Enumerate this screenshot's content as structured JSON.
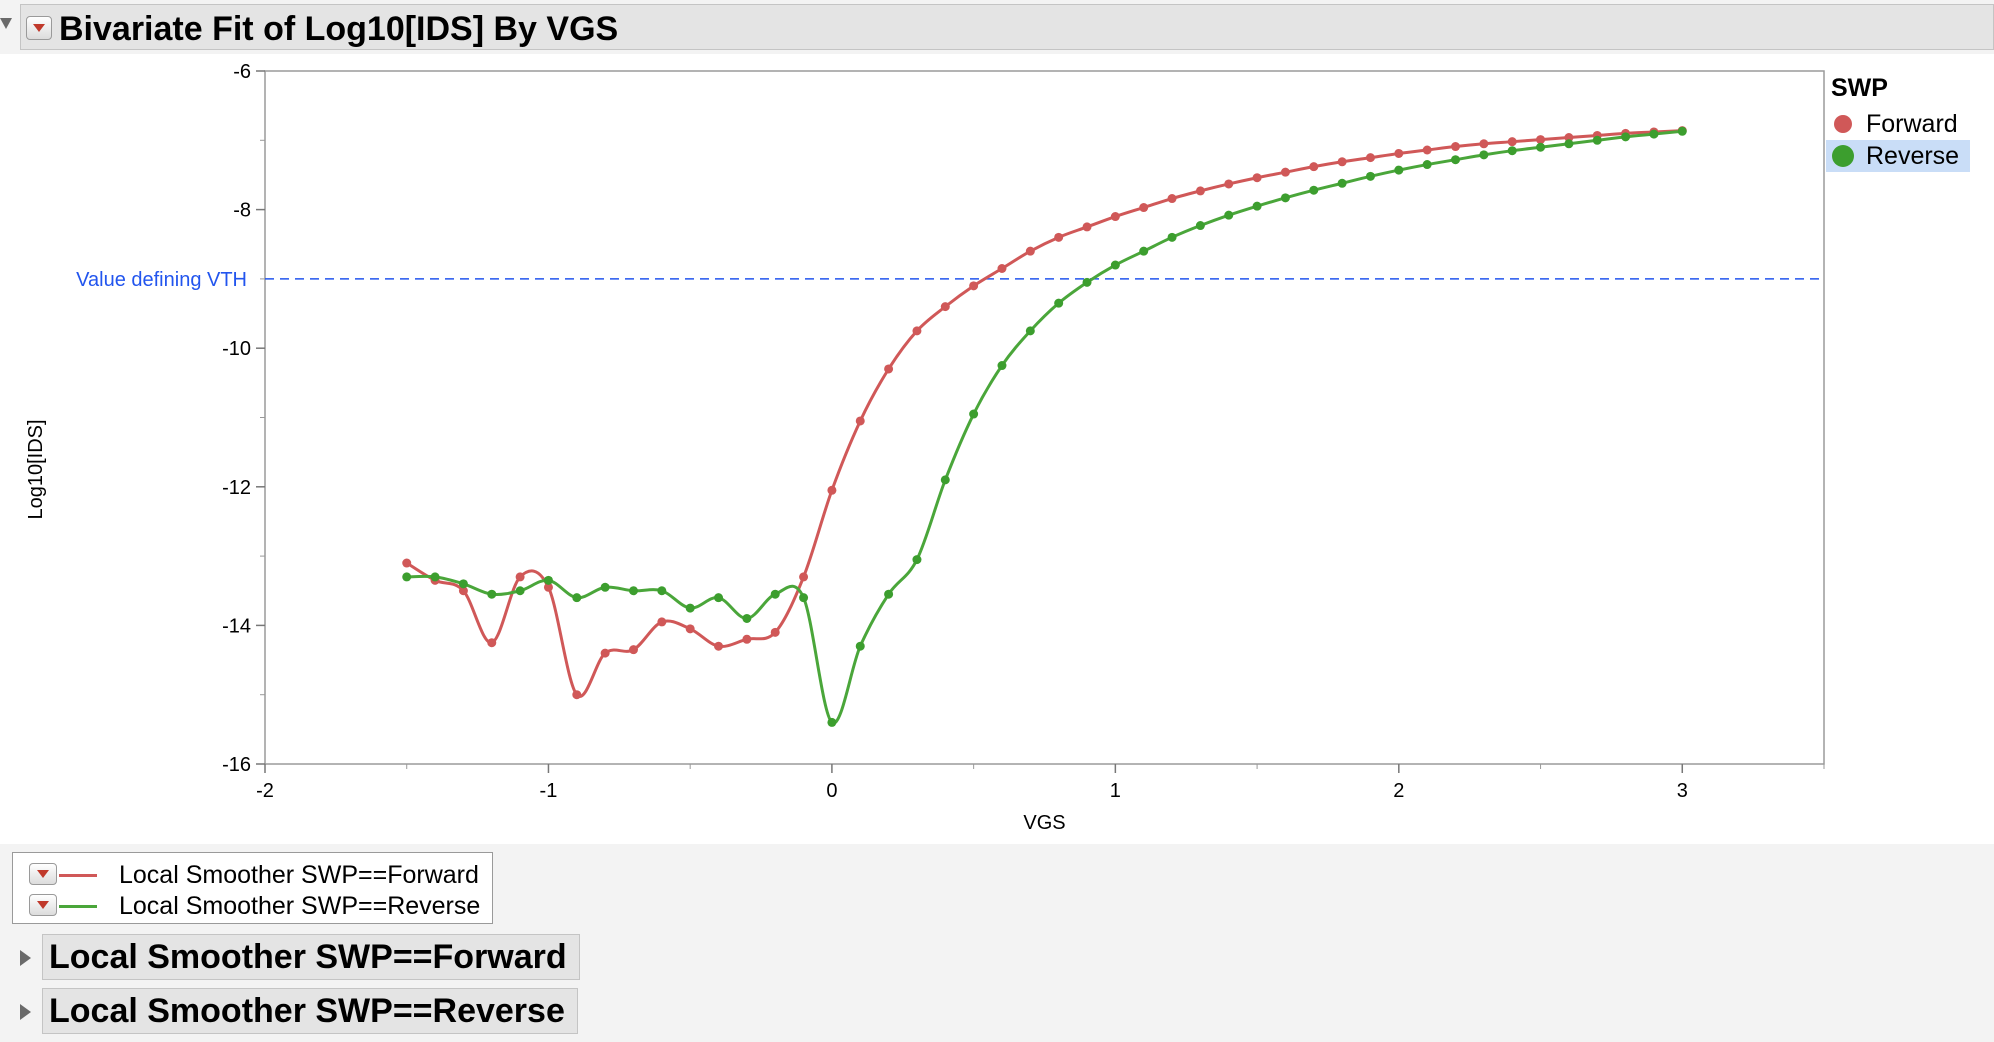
{
  "report": {
    "title": "Bivariate Fit of Log10[IDS] By VGS"
  },
  "legend": {
    "title": "SWP",
    "items": [
      {
        "label": "Forward",
        "color": "#d05858",
        "selected": false
      },
      {
        "label": "Reverse",
        "color": "#3c9e2e",
        "selected": true
      }
    ]
  },
  "fit_legend": {
    "items": [
      {
        "label": "Local Smoother SWP==Forward",
        "color": "#d05858"
      },
      {
        "label": "Local Smoother SWP==Reverse",
        "color": "#4aa63a"
      }
    ]
  },
  "sections": [
    {
      "label": "Local Smoother SWP==Forward"
    },
    {
      "label": "Local Smoother SWP==Reverse"
    }
  ],
  "chart_data": {
    "type": "scatter",
    "title": "Bivariate Fit of Log10[IDS] By VGS",
    "xlabel": "VGS",
    "ylabel": "Log10[IDS]",
    "xlim": [
      -2,
      3.5
    ],
    "ylim": [
      -16,
      -6
    ],
    "x_ticks": [
      -2,
      -1,
      0,
      1,
      2,
      3
    ],
    "y_ticks": [
      -16,
      -14,
      -12,
      -10,
      -8,
      -6
    ],
    "grid": false,
    "legend_placement": "right",
    "reference_line": {
      "y": -9,
      "label": "Value defining VTH",
      "color": "#2255ee",
      "style": "dashed"
    },
    "series": [
      {
        "name": "Forward",
        "color": "#d05858",
        "x": [
          -1.5,
          -1.4,
          -1.3,
          -1.2,
          -1.1,
          -1.0,
          -0.9,
          -0.8,
          -0.7,
          -0.6,
          -0.5,
          -0.4,
          -0.3,
          -0.2,
          -0.1,
          0.0,
          0.1,
          0.2,
          0.3,
          0.4,
          0.5,
          0.6,
          0.7,
          0.8,
          0.9,
          1.0,
          1.1,
          1.2,
          1.3,
          1.4,
          1.5,
          1.6,
          1.7,
          1.8,
          1.9,
          2.0,
          2.1,
          2.2,
          2.3,
          2.4,
          2.5,
          2.6,
          2.7,
          2.8,
          2.9,
          3.0
        ],
        "y": [
          -13.1,
          -13.35,
          -13.5,
          -14.25,
          -13.3,
          -13.45,
          -15.0,
          -14.4,
          -14.35,
          -13.95,
          -14.05,
          -14.3,
          -14.2,
          -14.1,
          -13.3,
          -12.05,
          -11.05,
          -10.3,
          -9.75,
          -9.4,
          -9.1,
          -8.85,
          -8.6,
          -8.4,
          -8.25,
          -8.1,
          -7.97,
          -7.84,
          -7.73,
          -7.63,
          -7.54,
          -7.46,
          -7.38,
          -7.31,
          -7.25,
          -7.19,
          -7.14,
          -7.09,
          -7.05,
          -7.02,
          -6.99,
          -6.96,
          -6.93,
          -6.9,
          -6.88,
          -6.86
        ]
      },
      {
        "name": "Reverse",
        "color": "#3c9e2e",
        "x": [
          -1.5,
          -1.4,
          -1.3,
          -1.2,
          -1.1,
          -1.0,
          -0.9,
          -0.8,
          -0.7,
          -0.6,
          -0.5,
          -0.4,
          -0.3,
          -0.2,
          -0.1,
          0.0,
          0.1,
          0.2,
          0.3,
          0.4,
          0.5,
          0.6,
          0.7,
          0.8,
          0.9,
          1.0,
          1.1,
          1.2,
          1.3,
          1.4,
          1.5,
          1.6,
          1.7,
          1.8,
          1.9,
          2.0,
          2.1,
          2.2,
          2.3,
          2.4,
          2.5,
          2.6,
          2.7,
          2.8,
          2.9,
          3.0
        ],
        "y": [
          -13.3,
          -13.3,
          -13.4,
          -13.55,
          -13.5,
          -13.35,
          -13.6,
          -13.45,
          -13.5,
          -13.5,
          -13.75,
          -13.6,
          -13.9,
          -13.55,
          -13.6,
          -15.4,
          -14.3,
          -13.55,
          -13.05,
          -11.9,
          -10.95,
          -10.25,
          -9.75,
          -9.35,
          -9.05,
          -8.8,
          -8.6,
          -8.4,
          -8.23,
          -8.08,
          -7.95,
          -7.83,
          -7.72,
          -7.62,
          -7.52,
          -7.43,
          -7.35,
          -7.28,
          -7.21,
          -7.15,
          -7.1,
          -7.05,
          -7.0,
          -6.95,
          -6.91,
          -6.87
        ]
      }
    ]
  }
}
